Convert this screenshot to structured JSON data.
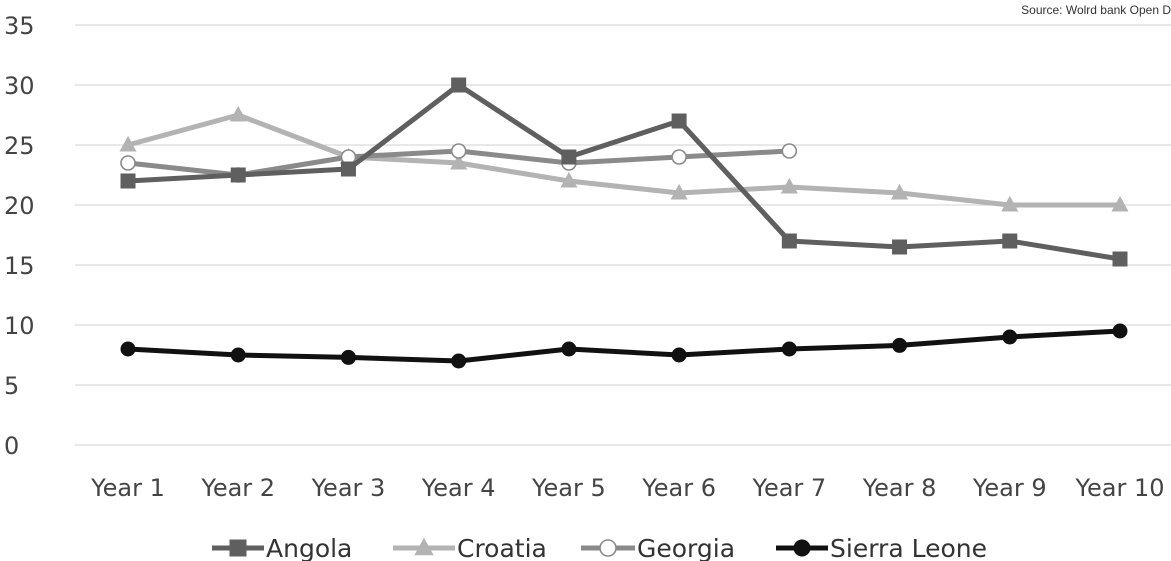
{
  "source_note": "Source: Wolrd bank Open D",
  "colors": {
    "angola": "#5f5f5f",
    "croatia": "#b3b3b3",
    "georgia": "#8a8a8a",
    "sierra_leone": "#111111",
    "gridline": "#d9d9d9"
  },
  "chart_data": {
    "type": "line",
    "title": "",
    "xlabel": "",
    "ylabel": "",
    "categories": [
      "Year 1",
      "Year 2",
      "Year 3",
      "Year 4",
      "Year 5",
      "Year 6",
      "Year 7",
      "Year 8",
      "Year 9",
      "Year 10"
    ],
    "ylim": [
      0,
      35
    ],
    "yticks": [
      0,
      5,
      10,
      15,
      20,
      25,
      30,
      35
    ],
    "grid": true,
    "legend_position": "bottom",
    "series": [
      {
        "name": "Angola",
        "marker": "square",
        "color": "#5f5f5f",
        "values": [
          22,
          22.5,
          23,
          30,
          24,
          27,
          17,
          16.5,
          17,
          15.5
        ]
      },
      {
        "name": "Croatia",
        "marker": "triangle",
        "color": "#b3b3b3",
        "values": [
          25,
          27.5,
          24,
          23.5,
          22,
          21,
          21.5,
          21,
          20,
          20
        ]
      },
      {
        "name": "Georgia",
        "marker": "open-circle",
        "color": "#8a8a8a",
        "values": [
          23.5,
          22.5,
          24,
          24.5,
          23.5,
          24,
          24.5,
          null,
          null,
          null
        ]
      },
      {
        "name": "Sierra Leone",
        "marker": "filled-circle",
        "color": "#111111",
        "values": [
          8,
          7.5,
          7.3,
          7,
          8,
          7.5,
          8,
          8.3,
          9,
          9.5
        ]
      }
    ]
  }
}
